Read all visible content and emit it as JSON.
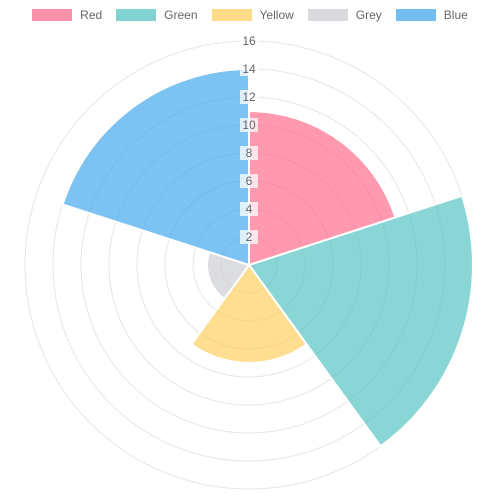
{
  "chart_data": {
    "type": "polarArea",
    "title": "",
    "categories": [
      "Red",
      "Green",
      "Yellow",
      "Grey",
      "Blue"
    ],
    "values": [
      11,
      16,
      7,
      3,
      14
    ],
    "colors": [
      "#ff6384",
      "#4bc0c0",
      "#ffcd56",
      "#c9cbcf",
      "#36a2eb"
    ],
    "r_range": [
      0,
      16
    ],
    "r_ticks": [
      "2",
      "4",
      "6",
      "8",
      "10",
      "12",
      "14",
      "16"
    ],
    "grid": true,
    "legend_position": "top"
  },
  "legend": [
    {
      "label": "Red"
    },
    {
      "label": "Green"
    },
    {
      "label": "Yellow"
    },
    {
      "label": "Grey"
    },
    {
      "label": "Blue"
    }
  ]
}
